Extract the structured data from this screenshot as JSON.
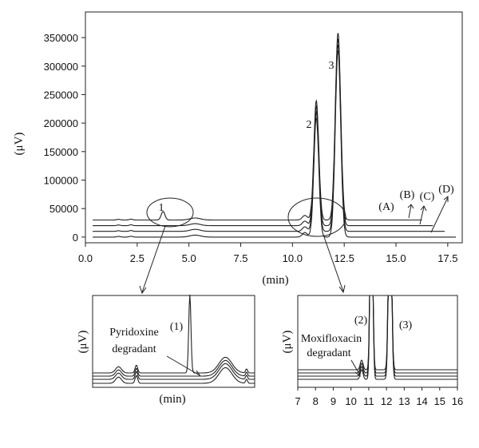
{
  "chart_data": [
    {
      "type": "line",
      "xlabel": "(min)",
      "ylabel": "(μV)",
      "x_ticks": [
        "0.0",
        "2.5",
        "5.0",
        "7.5",
        "10.0",
        "12.5",
        "15.0",
        "17.5"
      ],
      "y_ticks": [
        "0",
        "50000",
        "100000",
        "150000",
        "200000",
        "250000",
        "300000",
        "350000"
      ],
      "xlim": [
        0,
        18.2
      ],
      "ylim": [
        -10000,
        395000
      ],
      "baselines": [
        0,
        10000,
        20000,
        30000
      ],
      "series_labels": [
        "(A)",
        "(B)",
        "(C)",
        "(D)"
      ],
      "peaks": [
        {
          "label": "1",
          "x": 3.75,
          "height": 15000,
          "width": 0.09
        },
        {
          "label": "2",
          "x": 11.15,
          "height": 210000,
          "width": 0.12
        },
        {
          "label": "3",
          "x": 12.2,
          "height": 328000,
          "width": 0.13
        },
        {
          "label": "",
          "x": 10.6,
          "height": 8000,
          "width": 0.12
        }
      ]
    },
    {
      "type": "line",
      "xlabel": "(min)",
      "ylabel": "(μV)",
      "peaks": [
        {
          "label": "(1)",
          "x": 0.6,
          "height": 1.0
        },
        {
          "label": "",
          "x": 0.16,
          "height": 0.08
        },
        {
          "label": "",
          "x": 0.27,
          "height": 0.1
        },
        {
          "label": "",
          "x": 0.82,
          "height": 0.2
        }
      ],
      "annotation": [
        "Pyridoxine",
        "degradant"
      ]
    },
    {
      "type": "line",
      "xlabel": "",
      "ylabel": "(μV)",
      "x_ticks": [
        "7",
        "8",
        "9",
        "10",
        "11",
        "12",
        "13",
        "14",
        "15",
        "16"
      ],
      "xlim": [
        7,
        16
      ],
      "peaks": [
        {
          "label": "(2)",
          "x": 11.15
        },
        {
          "label": "(3)",
          "x": 12.2
        }
      ],
      "annotation": [
        "Moxifloxacin",
        "degradant"
      ]
    }
  ]
}
